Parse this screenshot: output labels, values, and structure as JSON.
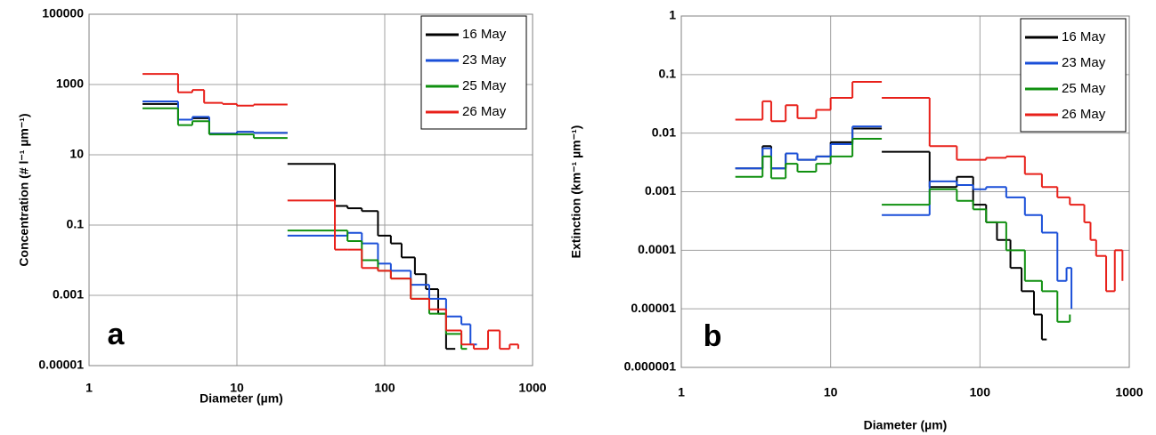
{
  "chart_data": [
    {
      "type": "line",
      "panel_label": "a",
      "xlabel": "Diameter (µm)",
      "ylabel": "Concentration (# l⁻¹ µm⁻¹)",
      "log_x": true,
      "log_y": true,
      "grid": true,
      "legend": "upper right",
      "xlim": [
        1,
        1000
      ],
      "xticks": [
        1,
        10,
        100,
        1000
      ],
      "ylim": [
        1e-05,
        100000
      ],
      "yticks": [
        1e-05,
        0.001,
        0.1,
        10,
        1000,
        100000
      ],
      "series": [
        {
          "name": "16 May",
          "color": "#000000",
          "x": [
            2.3,
            4,
            5,
            6.5,
            10,
            13,
            22,
            null,
            22,
            46,
            56,
            70,
            90,
            110,
            130,
            160,
            190,
            230,
            260,
            300
          ],
          "values": [
            280,
            100,
            110,
            40,
            45,
            42,
            42,
            null,
            5.5,
            0.35,
            0.3,
            0.25,
            0.05,
            0.03,
            0.012,
            0.004,
            0.0015,
            0.0003,
            3e-05,
            3e-05
          ]
        },
        {
          "name": "23 May",
          "color": "#1a4fd8",
          "x": [
            2.3,
            4,
            5,
            6.5,
            10,
            13,
            22,
            null,
            22,
            46,
            56,
            70,
            90,
            110,
            150,
            200,
            260,
            330,
            380,
            420
          ],
          "values": [
            330,
            100,
            120,
            40,
            45,
            42,
            42,
            null,
            0.05,
            0.05,
            0.06,
            0.03,
            0.008,
            0.005,
            0.002,
            0.0008,
            0.00025,
            0.00015,
            4e-05,
            4e-05
          ]
        },
        {
          "name": "25 May",
          "color": "#109010",
          "x": [
            2.3,
            4,
            5,
            6.5,
            10,
            13,
            22,
            null,
            22,
            46,
            56,
            70,
            90,
            110,
            150,
            200,
            260,
            330,
            360
          ],
          "values": [
            210,
            70,
            90,
            38,
            38,
            30,
            30,
            null,
            0.07,
            0.07,
            0.035,
            0.01,
            0.005,
            0.003,
            0.0008,
            0.0003,
            8e-05,
            3e-05,
            3e-05
          ]
        },
        {
          "name": "26 May",
          "color": "#e8201a",
          "x": [
            2.3,
            4,
            5,
            6,
            8,
            10,
            13,
            22,
            null,
            22,
            46,
            56,
            70,
            90,
            110,
            150,
            200,
            260,
            330,
            400,
            500,
            600,
            700,
            800
          ],
          "values": [
            2000,
            600,
            700,
            300,
            280,
            250,
            270,
            270,
            null,
            0.5,
            0.02,
            0.02,
            0.006,
            0.005,
            0.003,
            0.0008,
            0.0004,
            0.0001,
            4e-05,
            3e-05,
            0.0001,
            3e-05,
            4e-05,
            3e-05
          ]
        }
      ]
    },
    {
      "type": "line",
      "panel_label": "b",
      "xlabel": "Diameter (µm)",
      "ylabel": "Extinction (km⁻¹ µm⁻¹)",
      "log_x": true,
      "log_y": true,
      "grid": true,
      "legend": "upper right",
      "xlim": [
        1,
        1000
      ],
      "xticks": [
        1,
        10,
        100,
        1000
      ],
      "ylim": [
        1e-06,
        1
      ],
      "yticks": [
        1e-06,
        1e-05,
        0.0001,
        0.001,
        0.01,
        0.1,
        1
      ],
      "series": [
        {
          "name": "16 May",
          "color": "#000000",
          "x": [
            2.3,
            3.5,
            4,
            5,
            6,
            8,
            10,
            14,
            22,
            null,
            22,
            46,
            70,
            90,
            110,
            130,
            160,
            190,
            230,
            260,
            280
          ],
          "values": [
            0.0025,
            0.006,
            0.0025,
            0.0045,
            0.0035,
            0.004,
            0.007,
            0.012,
            0.012,
            null,
            0.0048,
            0.0012,
            0.0018,
            0.0006,
            0.0003,
            0.00015,
            5e-05,
            2e-05,
            8e-06,
            3e-06,
            3e-06
          ]
        },
        {
          "name": "23 May",
          "color": "#1a4fd8",
          "x": [
            2.3,
            3.5,
            4,
            5,
            6,
            8,
            10,
            14,
            22,
            null,
            22,
            46,
            70,
            90,
            110,
            150,
            200,
            260,
            330,
            380,
            410
          ],
          "values": [
            0.0025,
            0.0055,
            0.0025,
            0.0045,
            0.0035,
            0.004,
            0.0065,
            0.013,
            0.013,
            null,
            0.0004,
            0.0015,
            0.0013,
            0.0011,
            0.0012,
            0.0008,
            0.0004,
            0.0002,
            3e-05,
            5e-05,
            1e-05
          ]
        },
        {
          "name": "25 May",
          "color": "#109010",
          "x": [
            2.3,
            3.5,
            4,
            5,
            6,
            8,
            10,
            14,
            22,
            null,
            22,
            46,
            70,
            90,
            110,
            150,
            200,
            260,
            330,
            400
          ],
          "values": [
            0.0018,
            0.004,
            0.0017,
            0.003,
            0.0022,
            0.003,
            0.004,
            0.008,
            0.008,
            null,
            0.0006,
            0.0011,
            0.0007,
            0.0005,
            0.0003,
            0.0001,
            3e-05,
            2e-05,
            6e-06,
            8e-06
          ]
        },
        {
          "name": "26 May",
          "color": "#e8201a",
          "x": [
            2.3,
            3.5,
            4,
            5,
            6,
            8,
            10,
            14,
            22,
            null,
            22,
            46,
            70,
            110,
            150,
            200,
            260,
            330,
            400,
            500,
            550,
            600,
            700,
            800,
            900
          ],
          "values": [
            0.017,
            0.035,
            0.016,
            0.03,
            0.018,
            0.025,
            0.04,
            0.075,
            0.075,
            null,
            0.04,
            0.006,
            0.0035,
            0.0038,
            0.004,
            0.002,
            0.0012,
            0.0008,
            0.0006,
            0.0003,
            0.00015,
            8e-05,
            2e-05,
            0.0001,
            3e-05
          ]
        }
      ]
    }
  ]
}
